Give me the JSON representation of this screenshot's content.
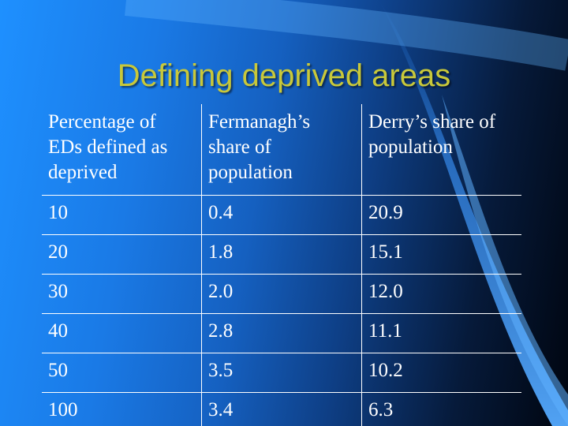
{
  "slide": {
    "title": "Defining deprived areas",
    "colors": {
      "title": "#c8c83a",
      "text": "#ffffff",
      "accent_curve": "#4fa3ff"
    },
    "table": {
      "headers": [
        "Percentage of EDs defined as deprived",
        "Fermanagh’s share of population",
        "Derry’s share of population"
      ],
      "rows": [
        [
          "10",
          "0.4",
          "20.9"
        ],
        [
          "20",
          "1.8",
          "15.1"
        ],
        [
          "30",
          "2.0",
          "12.0"
        ],
        [
          "40",
          "2.8",
          "11.1"
        ],
        [
          "50",
          "3.5",
          "10.2"
        ],
        [
          "100",
          "3.4",
          "6.3"
        ]
      ]
    }
  }
}
